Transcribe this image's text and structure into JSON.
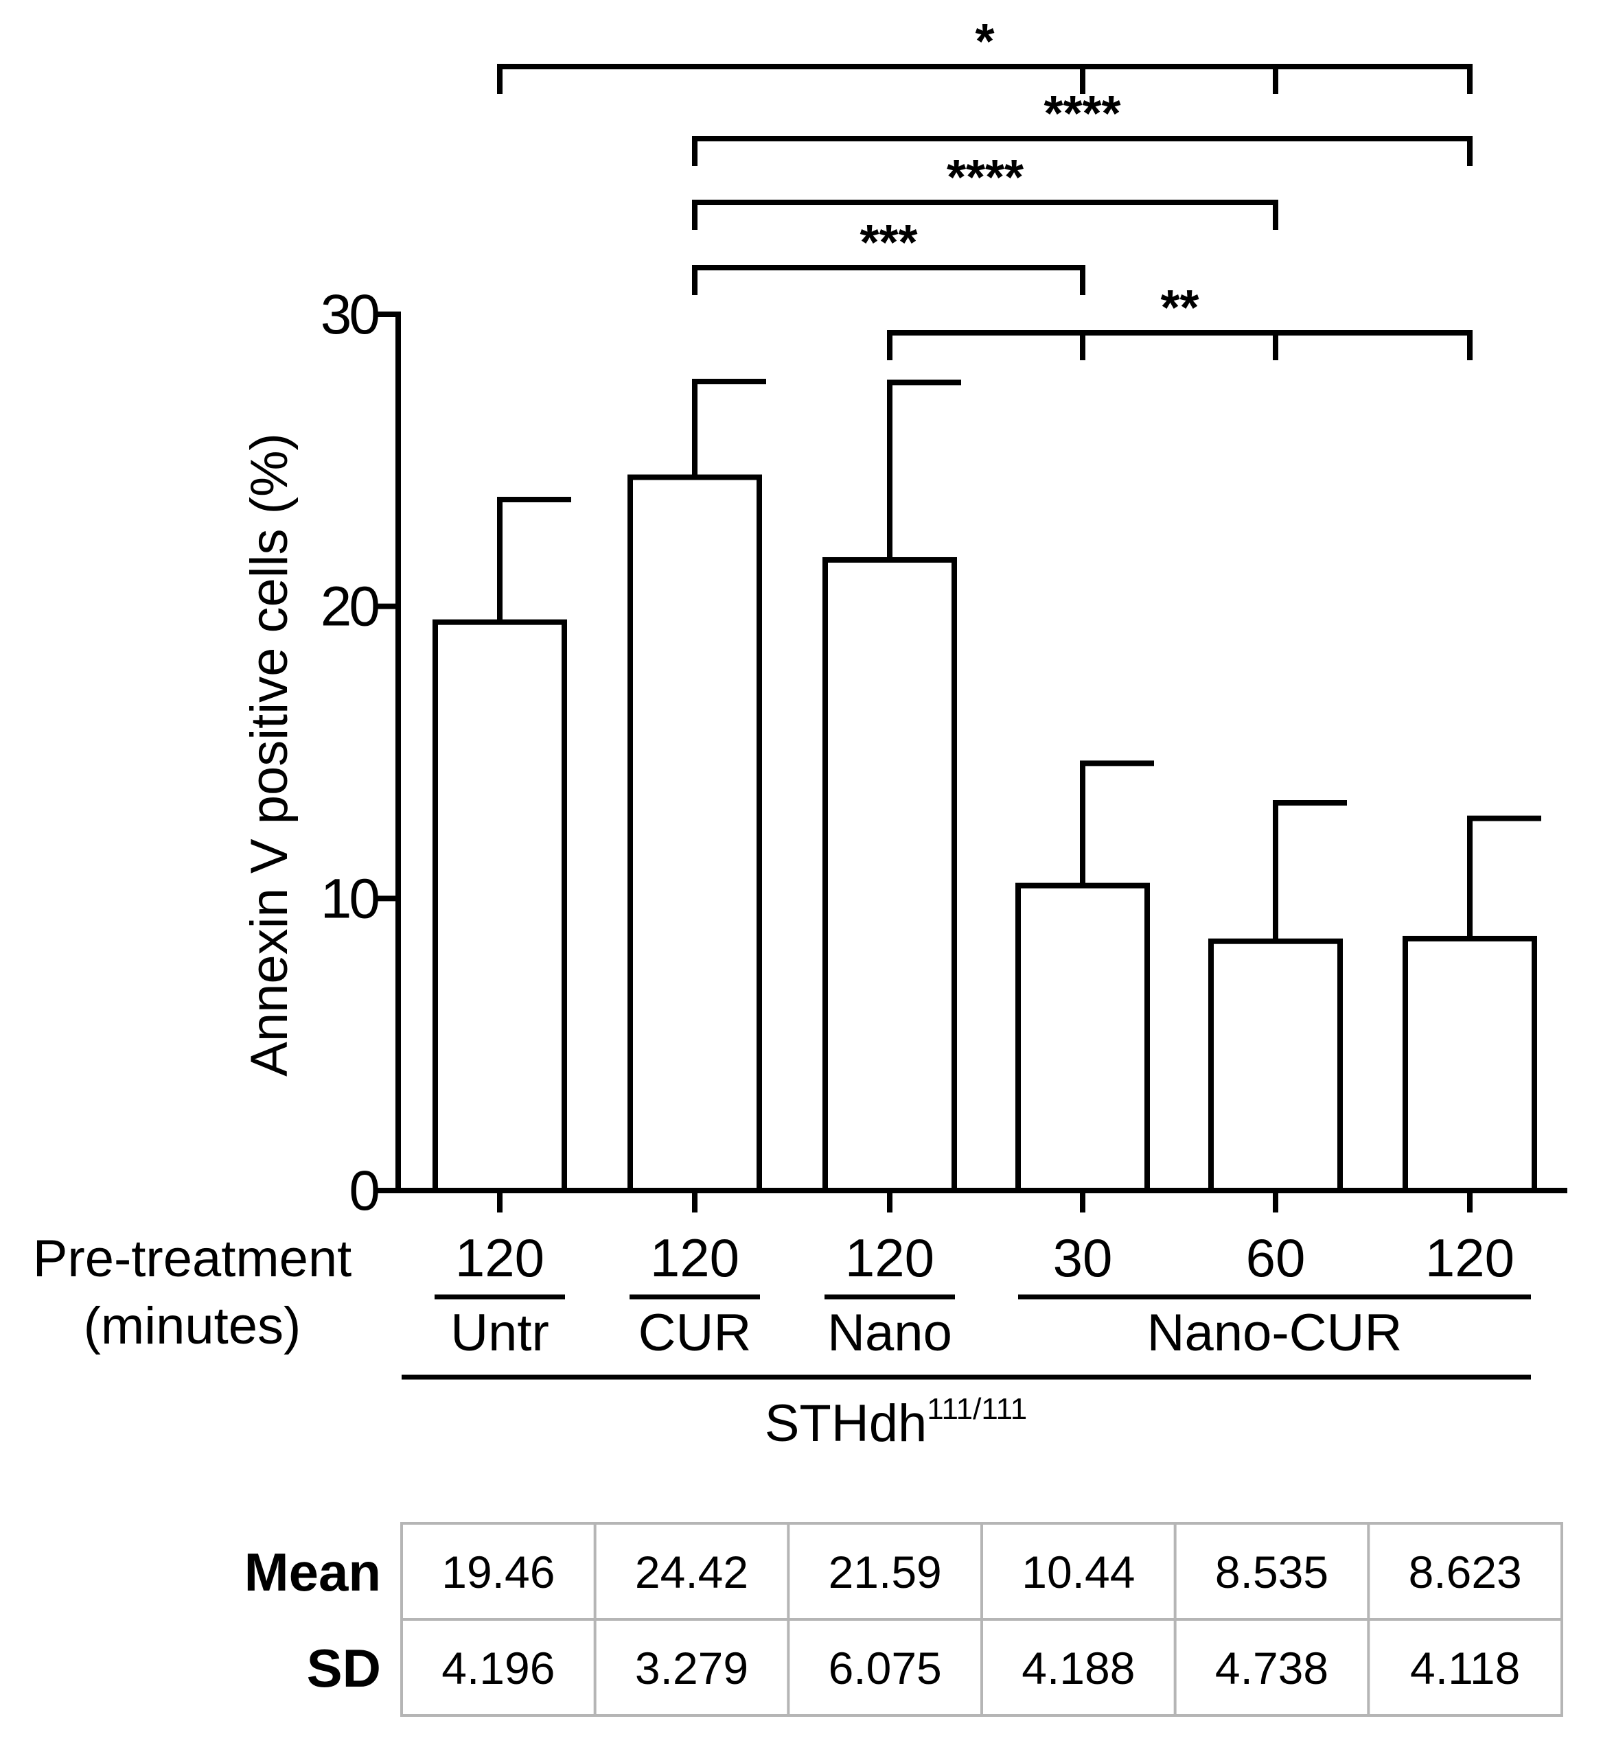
{
  "chart_data": {
    "type": "bar",
    "ylabel": "Annexin V positive cells (%)",
    "ylim": [
      0,
      30
    ],
    "yticks": [
      0,
      10,
      20,
      30
    ],
    "xlabel_line1": "Pre-treatment",
    "xlabel_line2": "(minutes)",
    "categories": [
      "120",
      "120",
      "120",
      "30",
      "60",
      "120"
    ],
    "groups": [
      {
        "label": "Untr",
        "span": [
          0,
          0
        ]
      },
      {
        "label": "CUR",
        "span": [
          1,
          1
        ]
      },
      {
        "label": "Nano",
        "span": [
          2,
          2
        ]
      },
      {
        "label": "Nano-CUR",
        "span": [
          3,
          5
        ]
      }
    ],
    "cell_line": {
      "base": "STHdh",
      "superscript": "111/111"
    },
    "values": [
      19.46,
      24.42,
      21.59,
      10.44,
      8.535,
      8.623
    ],
    "errors": [
      4.196,
      3.279,
      6.075,
      4.188,
      4.738,
      4.118
    ],
    "significance": [
      {
        "label": "*",
        "from": 0,
        "to": [
          3,
          4,
          5
        ]
      },
      {
        "label": "****",
        "from": 1,
        "to": [
          5
        ]
      },
      {
        "label": "****",
        "from": 1,
        "to": [
          4
        ]
      },
      {
        "label": "***",
        "from": 1,
        "to": [
          3
        ]
      },
      {
        "label": "**",
        "from": 2,
        "to": [
          3,
          4,
          5
        ]
      }
    ],
    "table": {
      "row_labels": [
        "Mean",
        "SD"
      ],
      "mean": [
        "19.46",
        "24.42",
        "21.59",
        "10.44",
        "8.535",
        "8.623"
      ],
      "sd": [
        "4.196",
        "3.279",
        "6.075",
        "4.188",
        "4.738",
        "4.118"
      ]
    }
  }
}
